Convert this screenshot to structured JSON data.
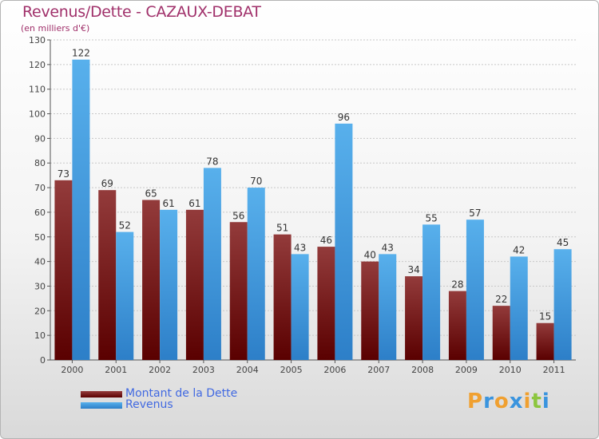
{
  "header": {
    "title": "Revenus/Dette - CAZAUX-DEBAT",
    "subtitle": "(en milliers d'€)"
  },
  "colors": {
    "dette": "#8b1a1a",
    "revenus": "#3a94de",
    "title": "#a0306a",
    "legend_text": "#4169e1"
  },
  "chart_data": {
    "type": "bar",
    "title": "Revenus/Dette - CAZAUX-DEBAT",
    "ylabel": "(en milliers d'€)",
    "xlabel": "",
    "categories": [
      "2000",
      "2001",
      "2002",
      "2003",
      "2004",
      "2005",
      "2006",
      "2007",
      "2008",
      "2009",
      "2010",
      "2011"
    ],
    "series": [
      {
        "name": "Montant de la Dette",
        "values": [
          73,
          69,
          65,
          61,
          56,
          51,
          46,
          40,
          34,
          28,
          22,
          15
        ]
      },
      {
        "name": "Revenus",
        "values": [
          122,
          52,
          61,
          78,
          70,
          43,
          96,
          43,
          55,
          57,
          42,
          45
        ]
      }
    ],
    "ylim": [
      0,
      130
    ],
    "yticks": [
      0,
      10,
      20,
      30,
      40,
      50,
      60,
      70,
      80,
      90,
      100,
      110,
      120,
      130
    ],
    "grid": true,
    "legend_position": "bottom-left"
  },
  "legend": {
    "items": [
      {
        "label": "Montant de la Dette"
      },
      {
        "label": "Revenus"
      }
    ]
  },
  "logo": {
    "letters": [
      "P",
      "r",
      "o",
      "x",
      "i",
      "t",
      "i"
    ],
    "colors": [
      "#f0a030",
      "#3a94de",
      "#f0a030",
      "#3a94de",
      "#f0a030",
      "#8cc63f",
      "#3a94de"
    ]
  }
}
